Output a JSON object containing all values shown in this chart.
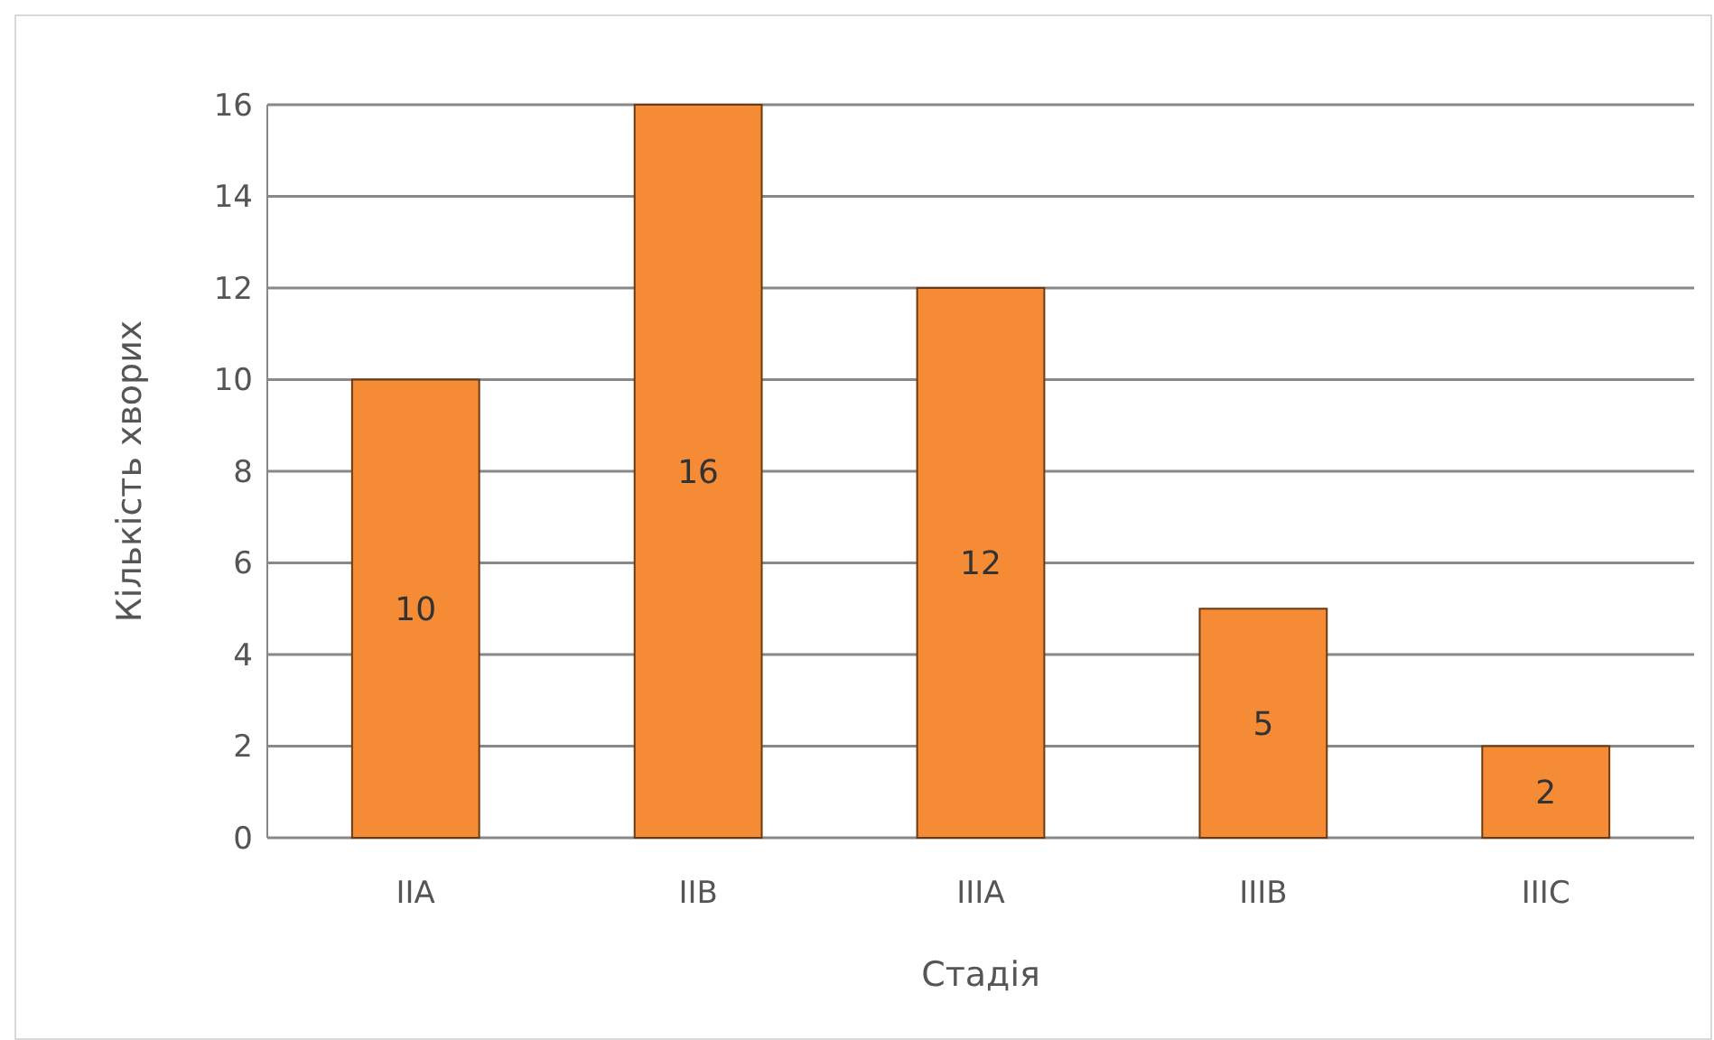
{
  "chart_data": {
    "type": "bar",
    "xlabel": "Стадія",
    "ylabel": "Кількість хворих",
    "categories": [
      "IIA",
      "IIB",
      "IIIA",
      "IIIB",
      "IIIC"
    ],
    "values": [
      10,
      16,
      12,
      5,
      2
    ],
    "color": "#f58b35",
    "ylim": [
      0,
      16
    ],
    "yticks": [
      0,
      2,
      4,
      6,
      8,
      10,
      12,
      14,
      16
    ],
    "grid": "y",
    "data_labels": true
  }
}
